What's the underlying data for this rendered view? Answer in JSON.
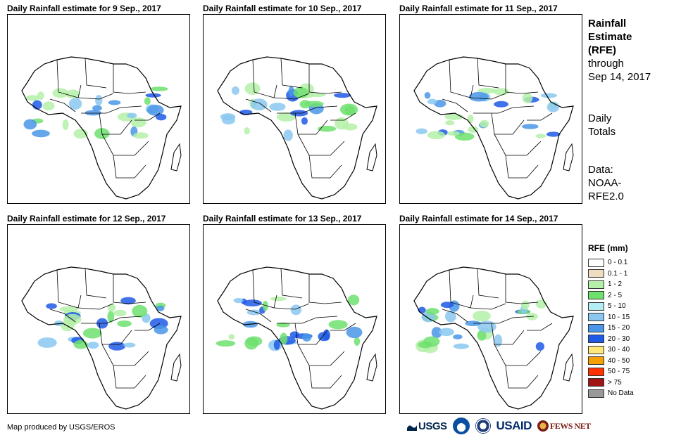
{
  "panels": [
    {
      "title": "Daily Rainfall estimate for 9 Sep., 2017"
    },
    {
      "title": "Daily Rainfall estimate for 10 Sep., 2017"
    },
    {
      "title": "Daily Rainfall estimate for 11 Sep., 2017"
    },
    {
      "title": "Daily Rainfall estimate for 12 Sep., 2017"
    },
    {
      "title": "Daily Rainfall estimate for 13 Sep., 2017"
    },
    {
      "title": "Daily Rainfall estimate for 14 Sep., 2017"
    }
  ],
  "sidebar": {
    "title_lines": [
      "Rainfall",
      "Estimate",
      "(RFE)"
    ],
    "through_lines": [
      "through",
      "Sep 14, 2017"
    ],
    "totals_lines": [
      "Daily",
      "Totals"
    ],
    "data_lines": [
      "Data:",
      "NOAA-",
      "RFE2.0"
    ]
  },
  "legend": {
    "title": "RFE (mm)",
    "items": [
      {
        "label": "0 - 0.1",
        "color": "#ffffff"
      },
      {
        "label": "0.1 - 1",
        "color": "#f0dcc0"
      },
      {
        "label": "1 - 2",
        "color": "#b4f0a8"
      },
      {
        "label": "2 - 5",
        "color": "#6ee06e"
      },
      {
        "label": "5 - 10",
        "color": "#b4ecf4"
      },
      {
        "label": "10 - 15",
        "color": "#8ac8f0"
      },
      {
        "label": "15 - 20",
        "color": "#4a96e8"
      },
      {
        "label": "20 - 30",
        "color": "#1e5ae6"
      },
      {
        "label": "30 - 40",
        "color": "#ffe678"
      },
      {
        "label": "40 - 50",
        "color": "#f5a000"
      },
      {
        "label": "50 - 75",
        "color": "#ff3200"
      },
      {
        "label": "> 75",
        "color": "#a01414"
      },
      {
        "label": "No Data",
        "color": "#999999"
      }
    ]
  },
  "footer": {
    "credit": "Map produced by USGS/EROS",
    "logos": {
      "usgs": "USGS",
      "usaid": "USAID",
      "fews": "FEWS NET"
    }
  },
  "icons": [
    "usgs-logo-icon",
    "noaa-logo-icon",
    "dhs-seal-icon",
    "usaid-logo-icon",
    "fews-net-logo-icon"
  ]
}
